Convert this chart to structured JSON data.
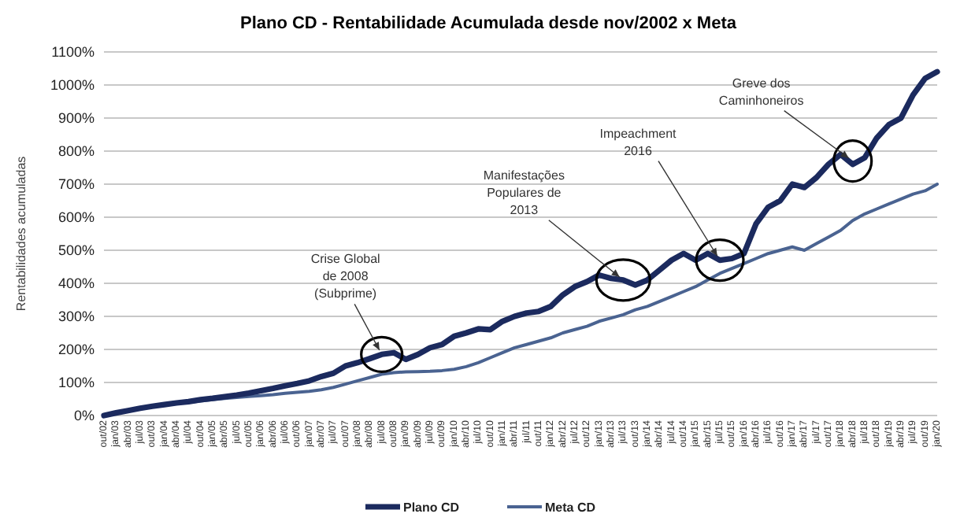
{
  "chart_data": {
    "type": "line",
    "title": "Plano CD - Rentabilidade Acumulada desde nov/2002 x Meta",
    "ylabel": "Rentabilidades acumuladas",
    "categories": [
      "out/02",
      "jan/03",
      "abr/03",
      "jul/03",
      "out/03",
      "jan/04",
      "abr/04",
      "jul/04",
      "out/04",
      "jan/05",
      "abr/05",
      "jul/05",
      "out/05",
      "jan/06",
      "abr/06",
      "jul/06",
      "out/06",
      "jan/07",
      "abr/07",
      "jul/07",
      "out/07",
      "jan/08",
      "abr/08",
      "jul/08",
      "out/08",
      "jan/09",
      "abr/09",
      "jul/09",
      "out/09",
      "jan/10",
      "abr/10",
      "jul/10",
      "out/10",
      "jan/11",
      "abr/11",
      "jul/11",
      "out/11",
      "jan/12",
      "abr/12",
      "jul/12",
      "out/12",
      "jan/13",
      "abr/13",
      "jul/13",
      "out/13",
      "jan/14",
      "abr/14",
      "jul/14",
      "out/14",
      "jan/15",
      "abr/15",
      "jul/15",
      "out/15",
      "jan/16",
      "abr/16",
      "jul/16",
      "out/16",
      "jan/17",
      "abr/17",
      "jul/17",
      "out/17",
      "jan/18",
      "abr/18",
      "jul/18",
      "out/18",
      "jan/19",
      "abr/19",
      "jul/19",
      "out/19",
      "jan/20"
    ],
    "series": [
      {
        "name": "Plano CD",
        "color": "#1b2a5e",
        "values": [
          0,
          8,
          15,
          22,
          28,
          33,
          38,
          42,
          48,
          52,
          57,
          62,
          68,
          75,
          82,
          90,
          97,
          105,
          118,
          128,
          150,
          160,
          172,
          185,
          190,
          170,
          185,
          205,
          215,
          240,
          250,
          262,
          260,
          285,
          300,
          310,
          315,
          330,
          365,
          390,
          405,
          425,
          415,
          410,
          395,
          410,
          440,
          470,
          490,
          470,
          490,
          470,
          475,
          490,
          580,
          630,
          650,
          700,
          690,
          720,
          760,
          790,
          760,
          780,
          840,
          880,
          900,
          970,
          1020,
          1040
        ]
      },
      {
        "name": "Meta CD",
        "color": "#4a6391",
        "values": [
          0,
          8,
          15,
          22,
          28,
          32,
          36,
          40,
          44,
          48,
          52,
          55,
          58,
          60,
          63,
          67,
          70,
          73,
          78,
          85,
          95,
          105,
          115,
          125,
          130,
          132,
          133,
          134,
          136,
          140,
          148,
          160,
          175,
          190,
          205,
          215,
          225,
          235,
          250,
          260,
          270,
          285,
          295,
          305,
          320,
          330,
          345,
          360,
          375,
          390,
          410,
          430,
          445,
          460,
          475,
          490,
          500,
          510,
          500,
          520,
          540,
          560,
          590,
          610,
          625,
          640,
          655,
          670,
          680,
          700
        ]
      }
    ],
    "ylim": [
      0,
      1100
    ],
    "yticks": [
      {
        "value": 0,
        "label": "0%"
      },
      {
        "value": 100,
        "label": "100%"
      },
      {
        "value": 200,
        "label": "200%"
      },
      {
        "value": 300,
        "label": "300%"
      },
      {
        "value": 400,
        "label": "400%"
      },
      {
        "value": 500,
        "label": "500%"
      },
      {
        "value": 600,
        "label": "600%"
      },
      {
        "value": 700,
        "label": "700%"
      },
      {
        "value": 800,
        "label": "800%"
      },
      {
        "value": 900,
        "label": "900%"
      },
      {
        "value": 1000,
        "label": "1000%"
      },
      {
        "value": 1100,
        "label": "1100%"
      }
    ],
    "grid": "y",
    "legend": "bottom",
    "line_style": "solid",
    "annotations": [
      {
        "text": "Crise Global\nde 2008\n(Subprime)",
        "x": "jul/08",
        "y": 185
      },
      {
        "text": "Manifestações\nPopulares de\n2013",
        "x": "jul/13",
        "y": 410
      },
      {
        "text": "Impeachment\n2016",
        "x": "jul/15",
        "y": 470
      },
      {
        "text": "Greve dos\nCaminhoneiros",
        "x": "abr/18",
        "y": 770
      }
    ]
  }
}
